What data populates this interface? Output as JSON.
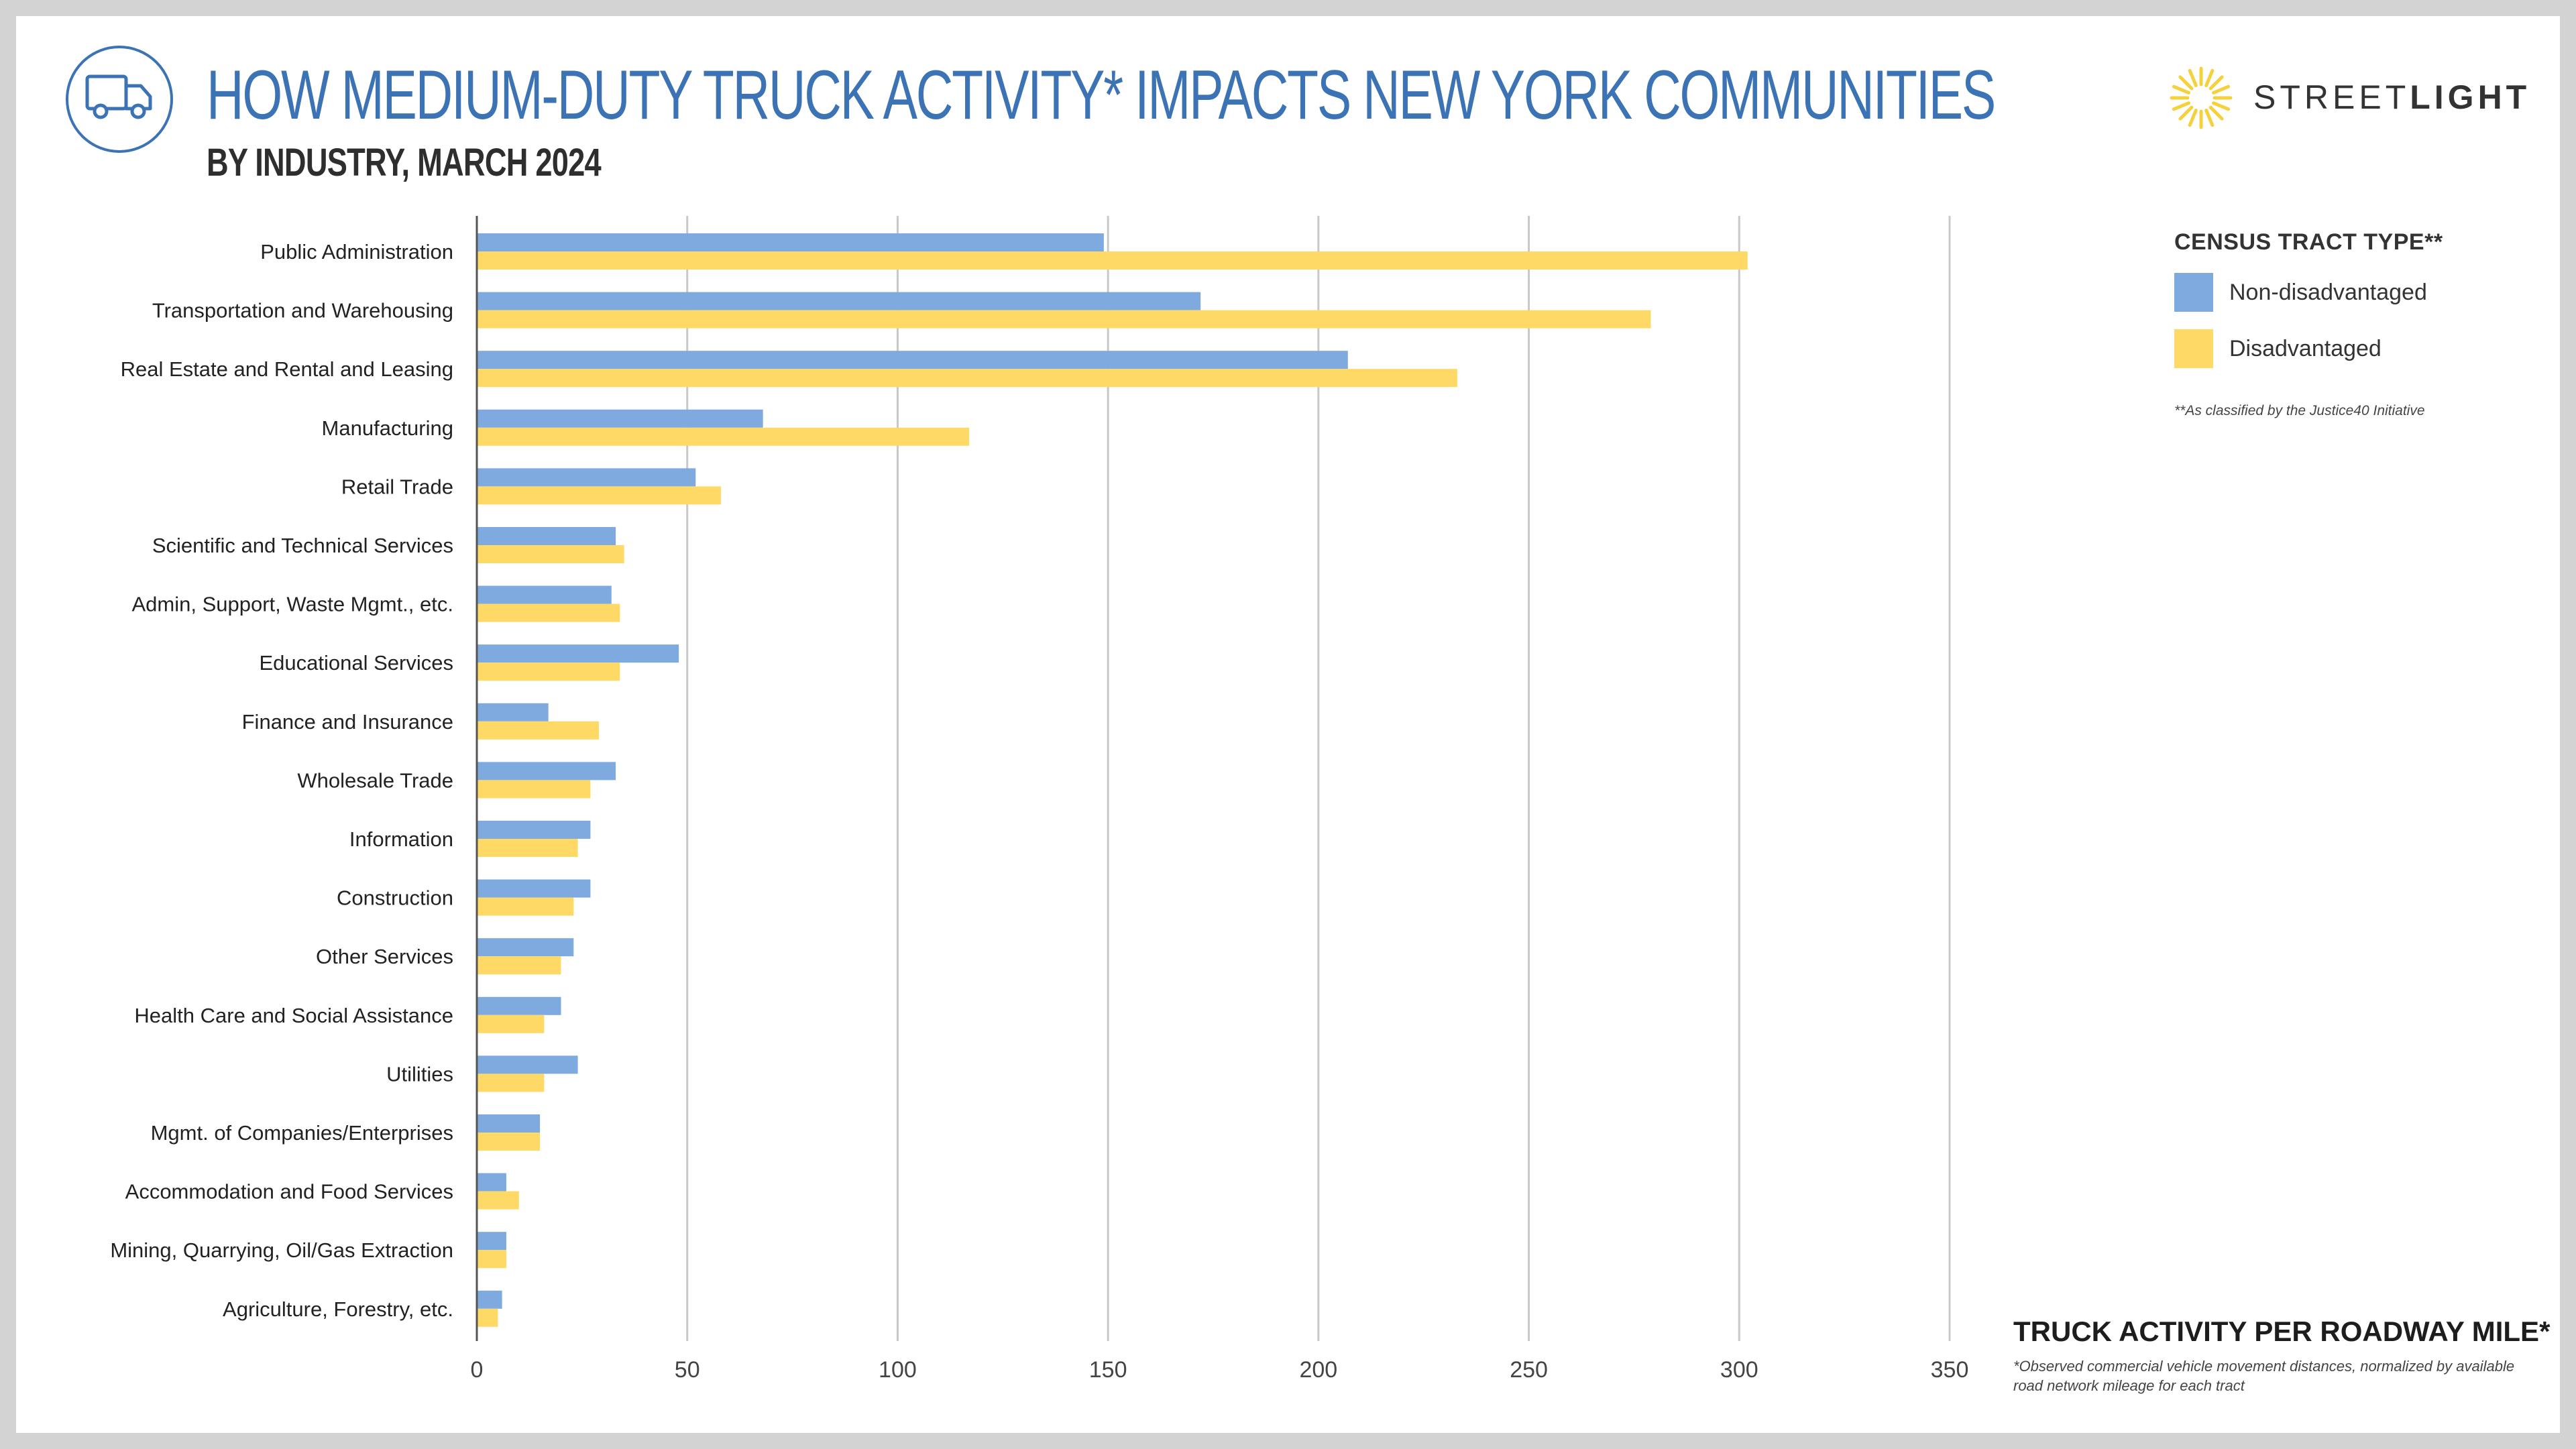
{
  "header": {
    "title": "HOW MEDIUM-DUTY TRUCK ACTIVITY* IMPACTS NEW YORK COMMUNITIES",
    "subtitle": "BY INDUSTRY, MARCH 2024",
    "icon": "truck-icon"
  },
  "logo": {
    "name_light": "STREET",
    "name_bold": "LIGHT",
    "icon": "sunburst-icon",
    "color": "#f5d23c"
  },
  "legend": {
    "title": "CENSUS TRACT TYPE**",
    "note": "**As classified by the Justice40 Initiative"
  },
  "axis_footer": {
    "title": "TRUCK ACTIVITY PER ROADWAY MILE*",
    "footnote": "*Observed commercial vehicle movement distances, normalized by available road network mileage for each tract"
  },
  "colors": {
    "non_disadvantaged": "#7eaadf",
    "disadvantaged": "#ffd966",
    "title_blue": "#3b73b5",
    "grid": "#c8c8c8"
  },
  "chart_data": {
    "type": "bar",
    "orientation": "horizontal",
    "title": "",
    "xlabel": "TRUCK ACTIVITY PER ROADWAY MILE*",
    "ylabel": "",
    "xlim": [
      0,
      350
    ],
    "xticks": [
      0,
      50,
      100,
      150,
      200,
      250,
      300,
      350
    ],
    "grid": true,
    "legend_position": "top-right",
    "categories": [
      "Public Administration",
      "Transportation and Warehousing",
      "Real Estate and Rental and Leasing",
      "Manufacturing",
      "Retail Trade",
      "Scientific and Technical Services",
      "Admin, Support, Waste Mgmt., etc.",
      "Educational Services",
      "Finance and Insurance",
      "Wholesale Trade",
      "Information",
      "Construction",
      "Other Services",
      "Health Care and Social Assistance",
      "Utilities",
      "Mgmt. of Companies/Enterprises",
      "Accommodation and Food Services",
      "Mining, Quarrying, Oil/Gas Extraction",
      "Agriculture, Forestry, etc."
    ],
    "series": [
      {
        "name": "Non-disadvantaged",
        "color": "#7eaadf",
        "values": [
          149,
          172,
          207,
          68,
          52,
          33,
          32,
          48,
          17,
          33,
          27,
          27,
          23,
          20,
          24,
          15,
          7,
          7,
          6
        ]
      },
      {
        "name": "Disadvantaged",
        "color": "#ffd966",
        "values": [
          302,
          279,
          233,
          117,
          58,
          35,
          34,
          34,
          29,
          27,
          24,
          23,
          20,
          16,
          16,
          15,
          10,
          7,
          5
        ]
      }
    ]
  }
}
